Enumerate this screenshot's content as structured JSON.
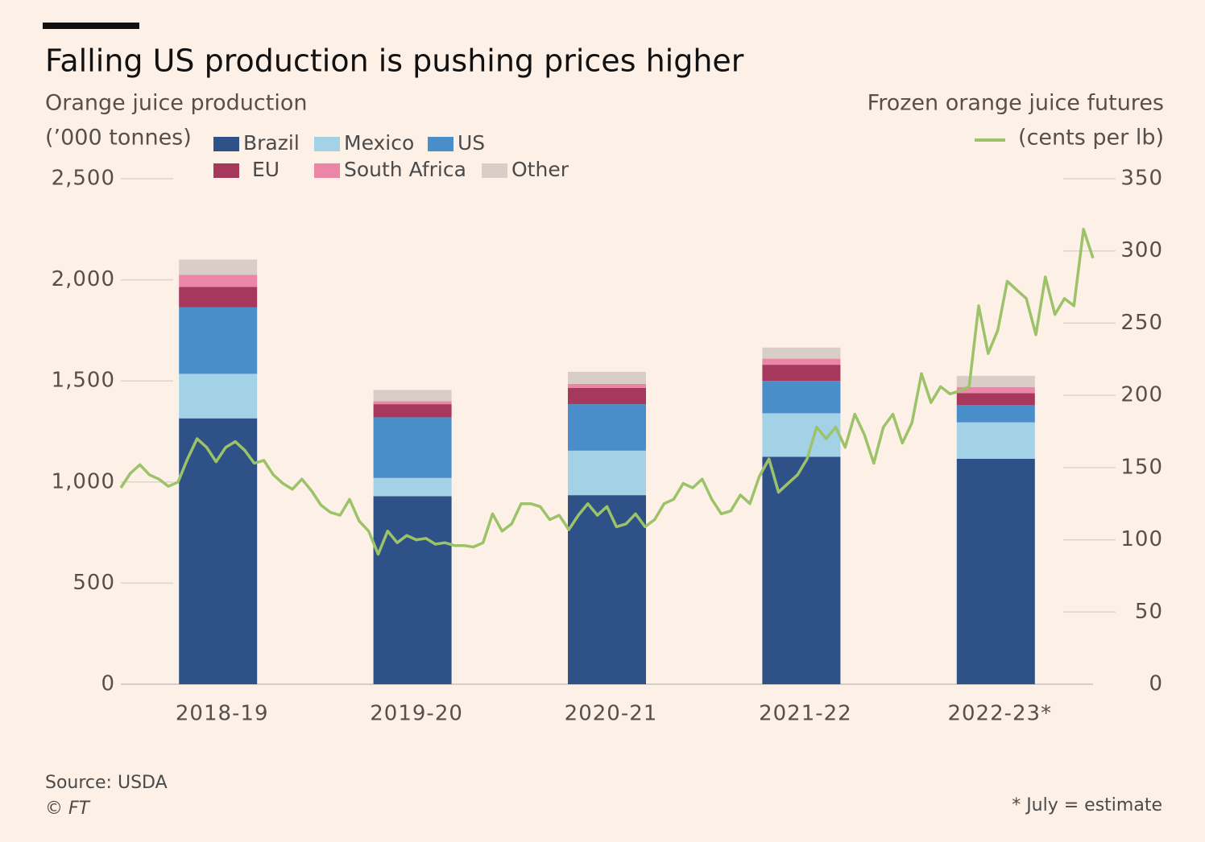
{
  "chart_data": {
    "type": "bar-line",
    "title": "Falling US production is pushing prices higher",
    "y_label": [
      "Orange juice production",
      "(’000 tonnes)"
    ],
    "y2_label": [
      "Frozen orange juice futures",
      "(cents per lb)"
    ],
    "categories": [
      "2018-19",
      "2019-20",
      "2020-21",
      "2021-22",
      "2022-23*"
    ],
    "series": [
      {
        "name": "Brazil",
        "color": "#2e5287",
        "values": [
          1315,
          930,
          935,
          1125,
          1115
        ]
      },
      {
        "name": "Mexico",
        "color": "#a3d2e6",
        "values": [
          220,
          90,
          220,
          215,
          180
        ]
      },
      {
        "name": "US",
        "color": "#4a8ec9",
        "values": [
          330,
          300,
          230,
          160,
          85
        ]
      },
      {
        "name": "EU",
        "color": "#a6385e",
        "values": [
          100,
          65,
          80,
          80,
          60
        ]
      },
      {
        "name": "South Africa",
        "color": "#ec86a8",
        "values": [
          60,
          15,
          20,
          30,
          30
        ]
      },
      {
        "name": "Other",
        "color": "#d8cec7",
        "values": [
          75,
          55,
          60,
          55,
          55
        ]
      }
    ],
    "line": {
      "color": "#9cc36a",
      "axis": "y2",
      "values": [
        136,
        146,
        152,
        145,
        142,
        137,
        140,
        156,
        170,
        164,
        154,
        164,
        168,
        162,
        153,
        155,
        145,
        139,
        135,
        142,
        134,
        124,
        119,
        117,
        128,
        113,
        106,
        90,
        106,
        98,
        103,
        100,
        101,
        97,
        98,
        96,
        96,
        95,
        98,
        118,
        106,
        111,
        125,
        125,
        123,
        114,
        117,
        107,
        117,
        125,
        117,
        123,
        109,
        111,
        118,
        109,
        114,
        125,
        128,
        139,
        136,
        142,
        128,
        118,
        120,
        131,
        125,
        144,
        156,
        133,
        139,
        145,
        156,
        178,
        170,
        178,
        164,
        187,
        173,
        153,
        178,
        187,
        167,
        181,
        215,
        195,
        206,
        201,
        203,
        206,
        262,
        229,
        245,
        279,
        273,
        267,
        242,
        282,
        256,
        267,
        262,
        315,
        295
      ]
    },
    "ylim": [
      0,
      2500
    ],
    "yticks": [
      0,
      500,
      {
        "value": 1000,
        "label": "1,000"
      },
      {
        "value": 1500,
        "label": "1,500"
      },
      {
        "value": 2000,
        "label": "2,000"
      },
      {
        "value": 2500,
        "label": "2,500"
      }
    ],
    "y2lim": [
      0,
      350
    ],
    "y2ticks": [
      0,
      50,
      100,
      150,
      200,
      250,
      300,
      350
    ],
    "source": "Source: USDA",
    "credit": "© FT",
    "note": "* July = estimate"
  }
}
